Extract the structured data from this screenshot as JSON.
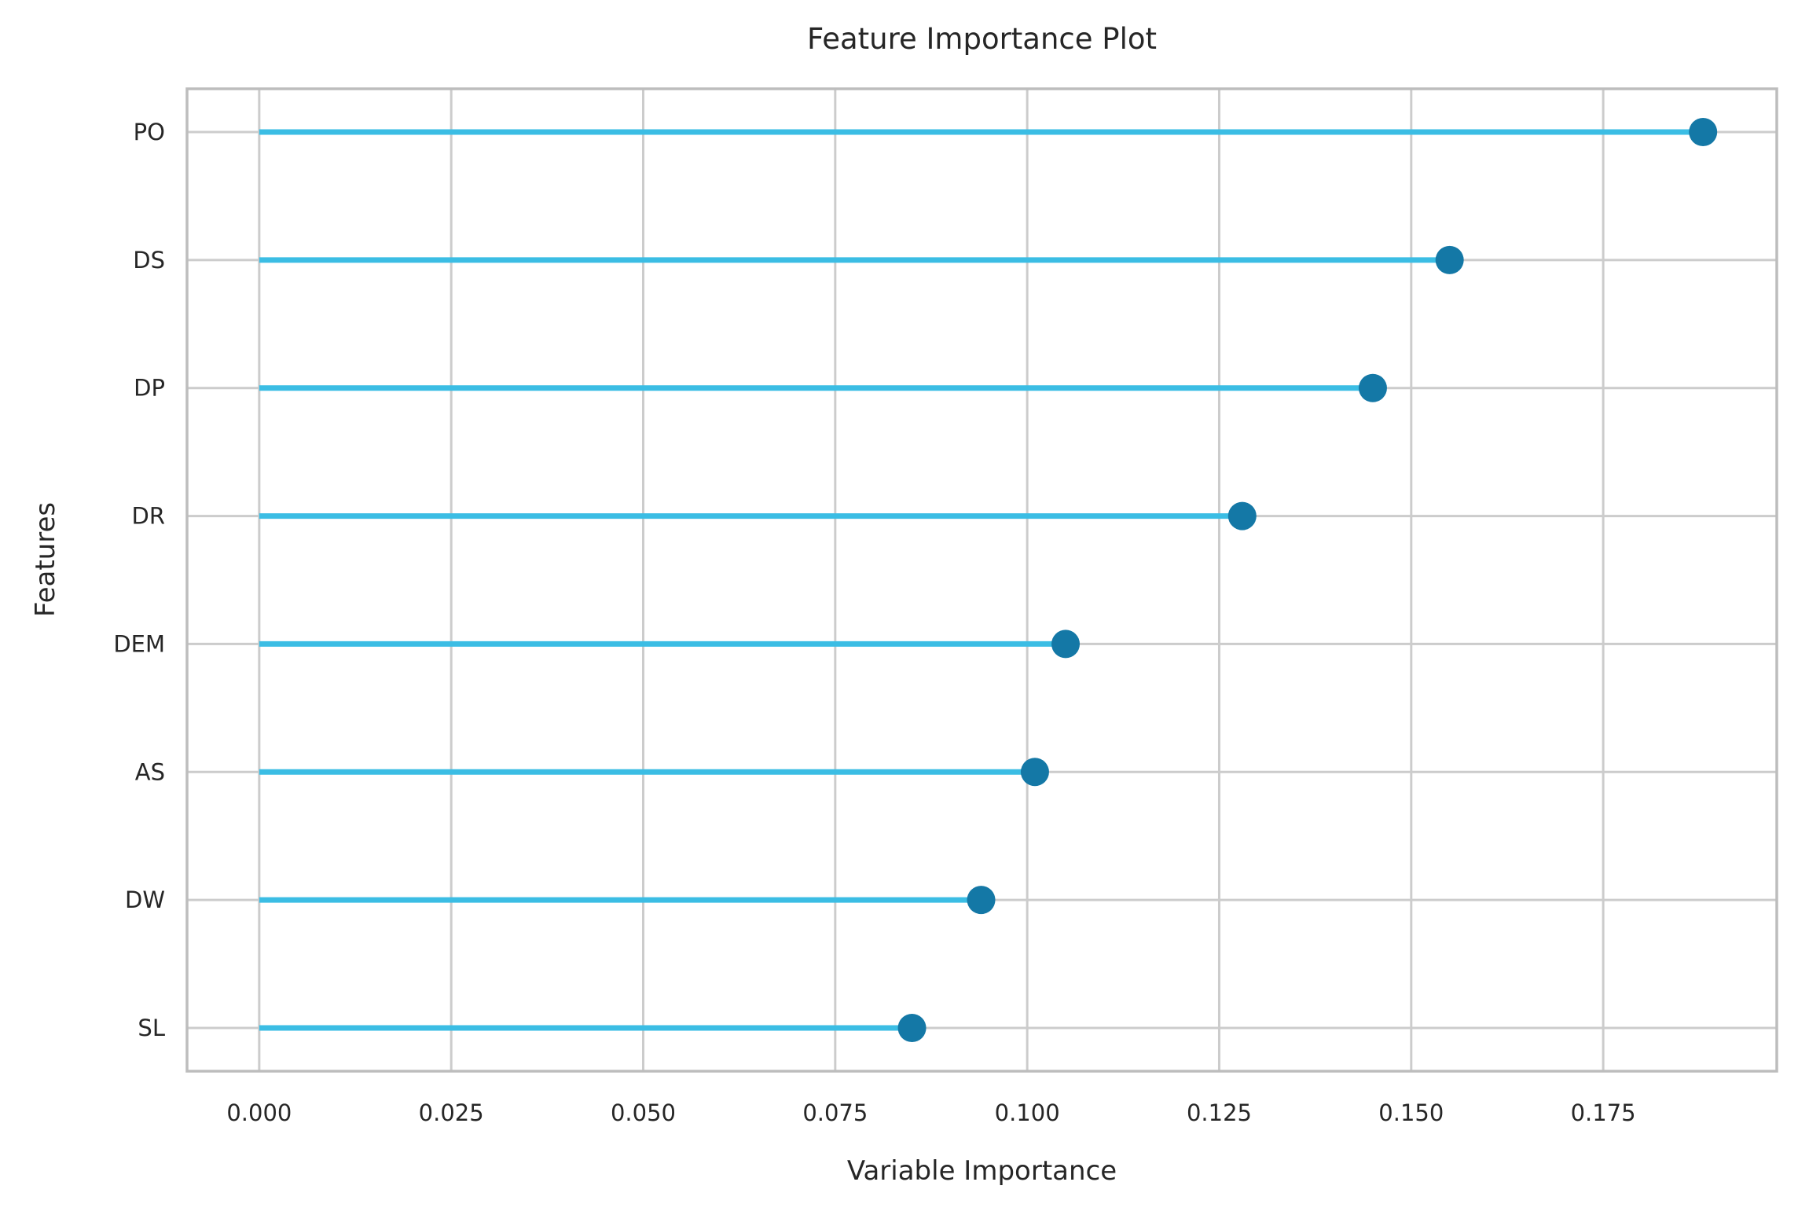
{
  "figure": {
    "title": "Feature Importance Plot",
    "x_axis_title": "Variable Importance",
    "y_axis_title": "Features"
  },
  "chart_data": {
    "type": "scatter",
    "variant": "horizontal-lollipop",
    "title": "Feature Importance Plot",
    "xlabel": "Variable Importance",
    "ylabel": "Features",
    "categories": [
      "PO",
      "DS",
      "DP",
      "DR",
      "DEM",
      "AS",
      "DW",
      "SL"
    ],
    "values": [
      0.188,
      0.155,
      0.145,
      0.128,
      0.105,
      0.101,
      0.094,
      0.085
    ],
    "stem_base": 0.0,
    "x_ticks": [
      0.0,
      0.025,
      0.05,
      0.075,
      0.1,
      0.125,
      0.15,
      0.175
    ],
    "x_tick_labels": [
      "0.000",
      "0.025",
      "0.050",
      "0.075",
      "0.100",
      "0.125",
      "0.150",
      "0.175"
    ],
    "xlim": [
      -0.0094,
      0.1976
    ],
    "grid": true,
    "legend_position": "none",
    "colors": {
      "stem": "#3bbde4",
      "marker": "#1478a6",
      "grid": "#cccccc",
      "border": "#bdbdbd",
      "text": "#262626",
      "background": "#ffffff"
    }
  }
}
